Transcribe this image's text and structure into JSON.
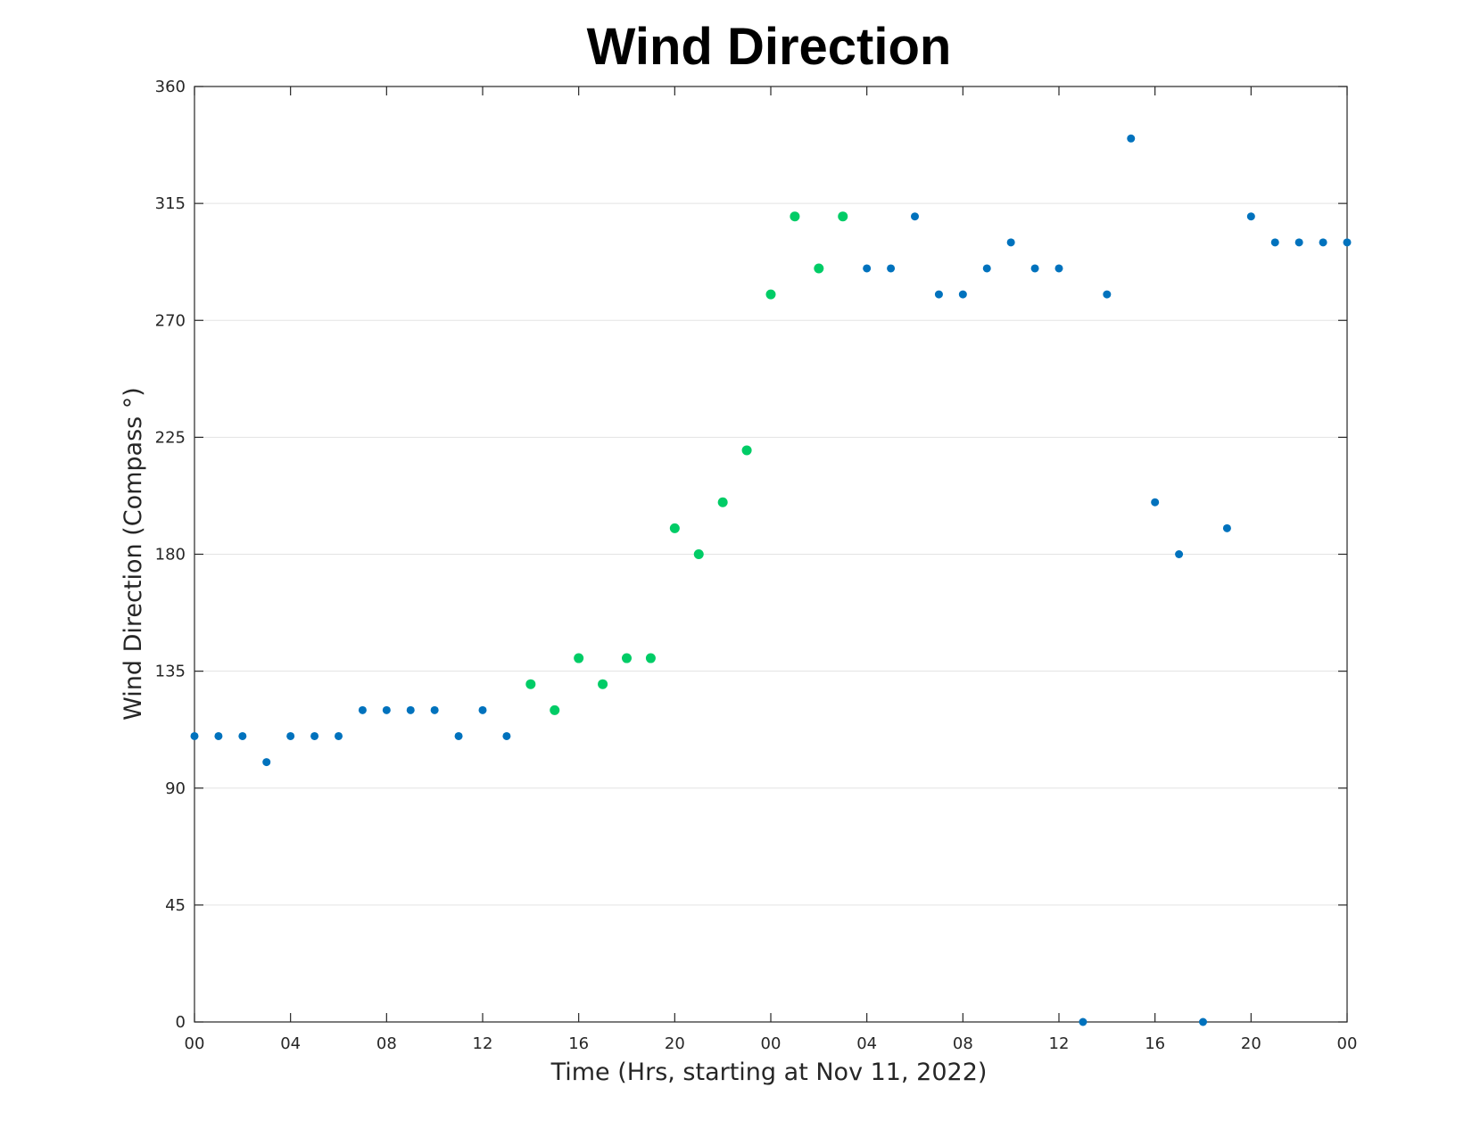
{
  "chart_data": {
    "type": "scatter",
    "title": "Wind Direction",
    "xlabel": "Time (Hrs, starting at Nov 11, 2022)",
    "ylabel": "Wind Direction (Compass °)",
    "xlim": [
      0,
      48
    ],
    "ylim": [
      0,
      360
    ],
    "x_tick_values": [
      0,
      4,
      8,
      12,
      16,
      20,
      24,
      28,
      32,
      36,
      40,
      44,
      48
    ],
    "x_tick_labels": [
      "00",
      "04",
      "08",
      "12",
      "16",
      "20",
      "00",
      "04",
      "08",
      "12",
      "16",
      "20",
      "00"
    ],
    "y_ticks": [
      0,
      45,
      90,
      135,
      180,
      225,
      270,
      315,
      360
    ],
    "grid": "horizontal",
    "colors": {
      "blue": "#0072bd",
      "green": "#00cc66"
    },
    "series": [
      {
        "color": "#0072bd",
        "points": [
          {
            "x": 0,
            "y": 110
          },
          {
            "x": 1,
            "y": 110
          },
          {
            "x": 2,
            "y": 110
          },
          {
            "x": 3,
            "y": 100
          },
          {
            "x": 4,
            "y": 110
          },
          {
            "x": 5,
            "y": 110
          },
          {
            "x": 6,
            "y": 110
          },
          {
            "x": 7,
            "y": 120
          },
          {
            "x": 8,
            "y": 120
          },
          {
            "x": 9,
            "y": 120
          },
          {
            "x": 10,
            "y": 120
          },
          {
            "x": 11,
            "y": 110
          },
          {
            "x": 12,
            "y": 120
          },
          {
            "x": 13,
            "y": 110
          },
          {
            "x": 28,
            "y": 290
          },
          {
            "x": 29,
            "y": 290
          },
          {
            "x": 30,
            "y": 310
          },
          {
            "x": 31,
            "y": 280
          },
          {
            "x": 32,
            "y": 280
          },
          {
            "x": 33,
            "y": 290
          },
          {
            "x": 34,
            "y": 300
          },
          {
            "x": 35,
            "y": 290
          },
          {
            "x": 36,
            "y": 290
          },
          {
            "x": 37,
            "y": 0
          },
          {
            "x": 38,
            "y": 280
          },
          {
            "x": 39,
            "y": 340
          },
          {
            "x": 40,
            "y": 200
          },
          {
            "x": 41,
            "y": 180
          },
          {
            "x": 42,
            "y": 0
          },
          {
            "x": 43,
            "y": 190
          },
          {
            "x": 44,
            "y": 310
          },
          {
            "x": 45,
            "y": 300
          },
          {
            "x": 46,
            "y": 300
          },
          {
            "x": 47,
            "y": 300
          },
          {
            "x": 48,
            "y": 300
          }
        ]
      },
      {
        "color": "#00cc66",
        "points": [
          {
            "x": 14,
            "y": 130
          },
          {
            "x": 15,
            "y": 120
          },
          {
            "x": 16,
            "y": 140
          },
          {
            "x": 17,
            "y": 130
          },
          {
            "x": 18,
            "y": 140
          },
          {
            "x": 19,
            "y": 140
          },
          {
            "x": 20,
            "y": 190
          },
          {
            "x": 21,
            "y": 180
          },
          {
            "x": 22,
            "y": 200
          },
          {
            "x": 23,
            "y": 220
          },
          {
            "x": 24,
            "y": 280
          },
          {
            "x": 25,
            "y": 310
          },
          {
            "x": 26,
            "y": 290
          },
          {
            "x": 27,
            "y": 310
          }
        ]
      }
    ]
  }
}
